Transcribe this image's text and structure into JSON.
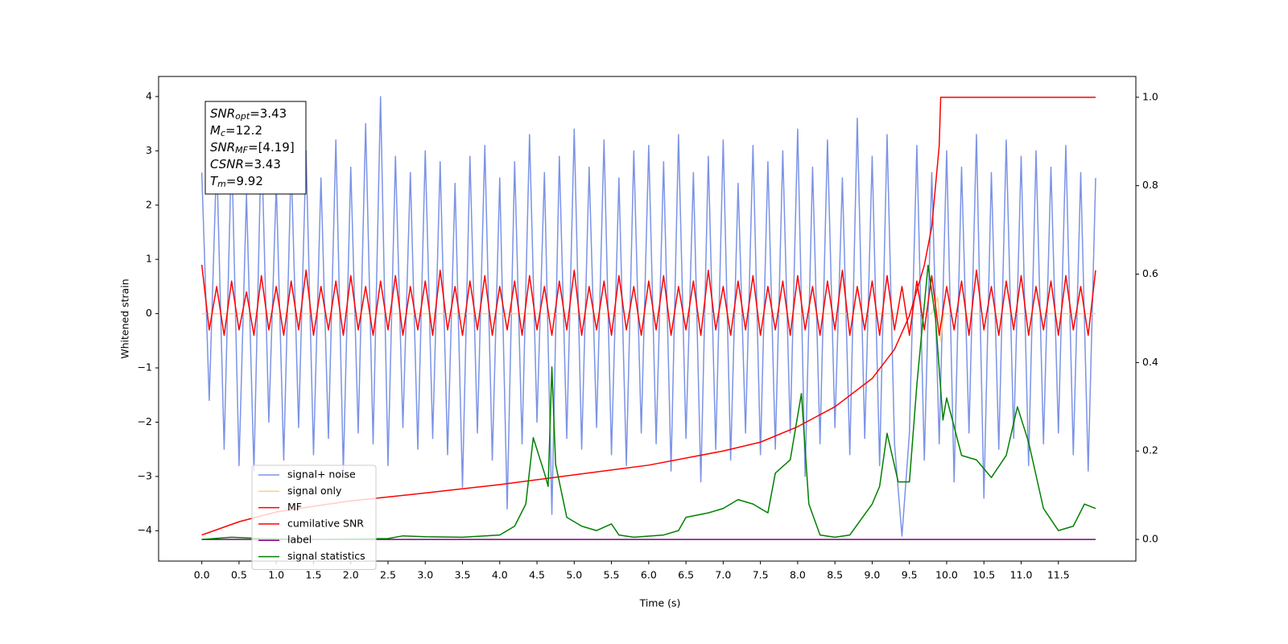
{
  "chart_data": {
    "type": "line",
    "xlabel": "Time (s)",
    "ylabel": "Whitened strain",
    "xlim": [
      -0.58,
      12.54
    ],
    "ylim": [
      -4.56,
      4.37
    ],
    "y2lim": [
      -0.049,
      1.047
    ],
    "xticks": [
      {
        "value": 0,
        "label": "0.0"
      },
      0.5,
      {
        "value": 1,
        "label": "1.0"
      },
      1.5,
      {
        "value": 2,
        "label": "2.0"
      },
      2.5,
      {
        "value": 3,
        "label": "3.0"
      },
      3.5,
      {
        "value": 4,
        "label": "4.0"
      },
      4.5,
      {
        "value": 5,
        "label": "5.0"
      },
      5.5,
      {
        "value": 6,
        "label": "6.0"
      },
      6.5,
      {
        "value": 7,
        "label": "7.0"
      },
      7.5,
      {
        "value": 8,
        "label": "8.0"
      },
      8.5,
      {
        "value": 9,
        "label": "9.0"
      },
      9.5,
      {
        "value": 10,
        "label": "10.0"
      },
      10.5,
      {
        "value": 11,
        "label": "11.0"
      },
      11.5
    ],
    "yticks": [
      {
        "value": -4,
        "label": "−4"
      },
      {
        "value": -3,
        "label": "−3"
      },
      {
        "value": -2,
        "label": "−2"
      },
      {
        "value": -1,
        "label": "−1"
      },
      0,
      1,
      2,
      3,
      4
    ],
    "y2ticks": [
      {
        "value": 0,
        "label": "0.0"
      },
      0.2,
      0.4,
      0.6,
      0.8,
      {
        "value": 1,
        "label": "1.0"
      }
    ],
    "grid": false,
    "legend": "lower left",
    "annotations": [
      {
        "base": "SNR",
        "sub": "opt",
        "rest": "=3.43"
      },
      {
        "base": "M",
        "sub": "c",
        "rest": "=12.2"
      },
      {
        "base": "SNR",
        "sub": "MF",
        "rest": "=[4.19]"
      },
      {
        "base": "CSNR",
        "sub": "",
        "rest": "=3.43"
      },
      {
        "base": "T",
        "sub": "m",
        "rest": "=9.92"
      }
    ],
    "x": [
      0,
      0.1,
      0.2,
      0.3,
      0.4,
      0.5,
      0.6,
      0.7,
      0.8,
      0.9,
      1,
      1.1,
      1.2,
      1.3,
      1.4,
      1.5,
      1.6,
      1.7,
      1.8,
      1.9,
      2,
      2.1,
      2.2,
      2.3,
      2.4,
      2.5,
      2.6,
      2.7,
      2.8,
      2.9,
      3,
      3.1,
      3.2,
      3.3,
      3.4,
      3.5,
      3.6,
      3.7,
      3.8,
      3.9,
      4,
      4.1,
      4.2,
      4.3,
      4.4,
      4.5,
      4.6,
      4.7,
      4.8,
      4.9,
      5,
      5.1,
      5.2,
      5.3,
      5.4,
      5.5,
      5.6,
      5.7,
      5.8,
      5.9,
      6,
      6.1,
      6.2,
      6.3,
      6.4,
      6.5,
      6.6,
      6.7,
      6.8,
      6.9,
      7,
      7.1,
      7.2,
      7.3,
      7.4,
      7.5,
      7.6,
      7.7,
      7.8,
      7.9,
      8,
      8.1,
      8.2,
      8.3,
      8.4,
      8.5,
      8.6,
      8.7,
      8.8,
      8.9,
      9,
      9.1,
      9.2,
      9.3,
      9.4,
      9.5,
      9.6,
      9.7,
      9.8,
      9.9,
      10,
      10.1,
      10.2,
      10.3,
      10.4,
      10.5,
      10.6,
      10.7,
      10.8,
      10.9,
      11,
      11.1,
      11.2,
      11.3,
      11.4,
      11.5,
      11.6,
      11.7,
      11.8,
      11.9,
      12
    ],
    "series": [
      {
        "name": "signal+ noise",
        "color": "#7b93e6",
        "values": [
          2.6,
          -1.6,
          2.9,
          -2.5,
          3.1,
          -2.8,
          2.2,
          -2.9,
          3.3,
          -2.0,
          2.4,
          -2.7,
          2.8,
          -2.1,
          3.0,
          -2.6,
          2.5,
          -2.3,
          3.2,
          -2.9,
          2.7,
          -2.2,
          3.5,
          -2.4,
          4.0,
          -2.8,
          2.9,
          -2.1,
          2.6,
          -2.5,
          3.0,
          -2.3,
          2.8,
          -2.6,
          2.4,
          -3.2,
          2.9,
          -2.2,
          3.1,
          -2.7,
          2.5,
          -3.6,
          2.8,
          -2.4,
          3.3,
          -2.0,
          2.6,
          -3.7,
          2.9,
          -2.3,
          3.4,
          -2.5,
          2.7,
          -2.1,
          3.2,
          -2.6,
          2.5,
          -2.8,
          3.0,
          -2.2,
          3.1,
          -2.4,
          2.8,
          -2.9,
          3.3,
          -2.3,
          2.6,
          -3.1,
          2.9,
          -2.5,
          3.2,
          -2.7,
          2.4,
          -2.2,
          3.1,
          -2.6,
          2.8,
          -2.5,
          3.0,
          -2.2,
          3.4,
          -3.0,
          2.7,
          -2.4,
          3.2,
          -2.1,
          2.5,
          -2.6,
          3.6,
          -2.3,
          2.9,
          -2.8,
          3.3,
          -2.4,
          -4.1,
          -2.2,
          3.1,
          -2.7,
          2.6,
          -2.4,
          3.0,
          -3.1,
          2.7,
          -2.2,
          3.3,
          -3.4,
          2.6,
          -2.5,
          3.2,
          -2.3,
          2.9,
          -2.8,
          3.0,
          -2.4,
          2.7,
          -2.2,
          3.1,
          -2.6,
          2.6,
          -2.9,
          2.5
        ]
      },
      {
        "name": "signal only",
        "color": "#f6d28b",
        "x": [
          0,
          9.8,
          9.88,
          9.92,
          9.96,
          12
        ],
        "values": [
          0,
          0,
          0.3,
          -0.5,
          0,
          0
        ]
      },
      {
        "name": "MF",
        "color": "#ff0000",
        "values": [
          0.9,
          -0.3,
          0.5,
          -0.4,
          0.6,
          -0.3,
          0.4,
          -0.4,
          0.7,
          -0.3,
          0.5,
          -0.4,
          0.6,
          -0.3,
          0.8,
          -0.4,
          0.5,
          -0.3,
          0.6,
          -0.4,
          0.7,
          -0.3,
          0.5,
          -0.4,
          0.6,
          -0.3,
          0.7,
          -0.4,
          0.5,
          -0.3,
          0.6,
          -0.4,
          0.8,
          -0.3,
          0.5,
          -0.4,
          0.6,
          -0.3,
          0.7,
          -0.4,
          0.5,
          -0.3,
          0.6,
          -0.4,
          0.7,
          -0.3,
          0.5,
          -0.4,
          0.6,
          -0.3,
          0.8,
          -0.4,
          0.5,
          -0.3,
          0.6,
          -0.4,
          0.7,
          -0.3,
          0.5,
          -0.4,
          0.6,
          -0.3,
          0.7,
          -0.4,
          0.5,
          -0.3,
          0.6,
          -0.4,
          0.8,
          -0.3,
          0.5,
          -0.4,
          0.6,
          -0.3,
          0.7,
          -0.4,
          0.5,
          -0.3,
          0.6,
          -0.4,
          0.7,
          -0.3,
          0.5,
          -0.4,
          0.6,
          -0.3,
          0.8,
          -0.4,
          0.5,
          -0.3,
          0.6,
          -0.4,
          0.7,
          -0.3,
          0.5,
          -0.4,
          0.6,
          -0.3,
          0.7,
          -0.4,
          0.5,
          -0.3,
          0.6,
          -0.4,
          0.8,
          -0.3,
          0.5,
          -0.4,
          0.6,
          -0.3,
          0.7,
          -0.4,
          0.5,
          -0.3,
          0.6,
          -0.4,
          0.7,
          -0.3,
          0.5,
          -0.4,
          0.8
        ]
      },
      {
        "name": "cumilative SNR",
        "color": "#ff0000",
        "axis": "y2",
        "x": [
          0,
          0.5,
          1,
          1.5,
          2,
          3,
          4,
          5,
          6,
          7,
          7.5,
          8,
          8.5,
          9,
          9.3,
          9.5,
          9.7,
          9.8,
          9.9,
          9.92,
          12
        ],
        "values": [
          0.01,
          0.04,
          0.062,
          0.075,
          0.087,
          0.105,
          0.124,
          0.146,
          0.168,
          0.2,
          0.22,
          0.255,
          0.3,
          0.364,
          0.43,
          0.506,
          0.62,
          0.707,
          0.89,
          1.0,
          1.0
        ]
      },
      {
        "name": "label",
        "color": "#800080",
        "axis": "y2",
        "x": [
          0,
          12
        ],
        "values": [
          0,
          0
        ]
      },
      {
        "name": "signal statistics",
        "color": "#008000",
        "axis": "y2",
        "x": [
          0,
          0.4,
          0.8,
          1.5,
          2.5,
          2.7,
          3.0,
          3.5,
          4.0,
          4.2,
          4.35,
          4.45,
          4.6,
          4.65,
          4.7,
          4.75,
          4.9,
          5.1,
          5.3,
          5.5,
          5.6,
          5.8,
          6.2,
          6.4,
          6.5,
          6.8,
          7.0,
          7.2,
          7.4,
          7.6,
          7.7,
          7.9,
          8.05,
          8.15,
          8.3,
          8.5,
          8.7,
          9.0,
          9.1,
          9.2,
          9.35,
          9.5,
          9.6,
          9.75,
          9.85,
          9.95,
          10.0,
          10.2,
          10.4,
          10.6,
          10.8,
          10.95,
          11.1,
          11.3,
          11.5,
          11.7,
          11.85,
          12.0
        ],
        "values": [
          0,
          0.005,
          0.002,
          0,
          0.002,
          0.008,
          0.006,
          0.005,
          0.01,
          0.03,
          0.08,
          0.23,
          0.15,
          0.12,
          0.39,
          0.17,
          0.05,
          0.03,
          0.02,
          0.035,
          0.01,
          0.005,
          0.01,
          0.02,
          0.05,
          0.06,
          0.07,
          0.09,
          0.08,
          0.06,
          0.15,
          0.18,
          0.33,
          0.08,
          0.01,
          0.005,
          0.01,
          0.08,
          0.12,
          0.24,
          0.13,
          0.13,
          0.35,
          0.62,
          0.5,
          0.27,
          0.32,
          0.19,
          0.18,
          0.14,
          0.19,
          0.3,
          0.22,
          0.07,
          0.02,
          0.03,
          0.08,
          0.07
        ]
      }
    ]
  }
}
